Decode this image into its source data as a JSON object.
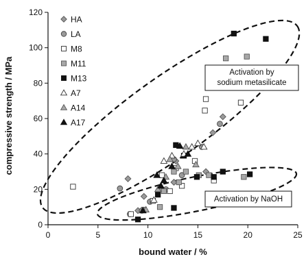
{
  "chart_data": {
    "type": "scatter",
    "xlabel": "bound water / %",
    "ylabel": "compressive strength / MPa",
    "xlim": [
      0,
      25
    ],
    "ylim": [
      0,
      120
    ],
    "xticks": [
      "0",
      "5",
      "10",
      "15",
      "20",
      "25"
    ],
    "yticks": [
      "0",
      "20",
      "40",
      "60",
      "80",
      "100",
      "120"
    ],
    "legend_position": "top-left",
    "annotations": [
      {
        "id": "silicate",
        "lines": [
          "Activation by",
          "sodium metasilicate"
        ]
      },
      {
        "id": "naoh",
        "lines": [
          "Activation by NaOH"
        ]
      }
    ],
    "series": [
      {
        "name": "HA",
        "marker": "diamond",
        "fill": "#9a9a9a",
        "stroke": "#555555",
        "points": [
          [
            8,
            26
          ],
          [
            9,
            8
          ],
          [
            9.6,
            16
          ],
          [
            12.8,
            36
          ],
          [
            15.8,
            30
          ],
          [
            16.5,
            52
          ],
          [
            17.5,
            61
          ],
          [
            11.4,
            20
          ],
          [
            12.6,
            24
          ]
        ]
      },
      {
        "name": "LA",
        "marker": "circle",
        "fill": "#9a9a9a",
        "stroke": "#444444",
        "points": [
          [
            7.2,
            20.5
          ],
          [
            8.2,
            6
          ],
          [
            9.4,
            8
          ],
          [
            10.2,
            13
          ],
          [
            11.8,
            20
          ],
          [
            12.6,
            37
          ],
          [
            13.4,
            28
          ],
          [
            15.4,
            44
          ],
          [
            17.2,
            57
          ]
        ]
      },
      {
        "name": "M8",
        "marker": "square",
        "fill": "#ffffff",
        "stroke": "#333333",
        "points": [
          [
            2.5,
            21.5
          ],
          [
            8.3,
            6
          ],
          [
            10.5,
            13.5
          ],
          [
            11.4,
            28
          ],
          [
            12.2,
            19
          ],
          [
            12.8,
            32
          ],
          [
            13.4,
            22
          ],
          [
            14.7,
            36
          ],
          [
            15.7,
            64.5
          ],
          [
            15.8,
            71
          ],
          [
            16.6,
            25
          ],
          [
            19.3,
            69
          ]
        ]
      },
      {
        "name": "M11",
        "marker": "square",
        "fill": "#a8a8a8",
        "stroke": "#555555",
        "points": [
          [
            9.6,
            8.5
          ],
          [
            11.2,
            10
          ],
          [
            11.6,
            19
          ],
          [
            12.6,
            30
          ],
          [
            13.1,
            24
          ],
          [
            13.8,
            30
          ],
          [
            15.1,
            28
          ],
          [
            16.1,
            28
          ],
          [
            17.8,
            94
          ],
          [
            19.9,
            95
          ],
          [
            19.6,
            27
          ]
        ]
      },
      {
        "name": "M13",
        "marker": "square",
        "fill": "#111111",
        "stroke": "#111111",
        "points": [
          [
            9,
            3
          ],
          [
            11,
            17
          ],
          [
            12.6,
            9.5
          ],
          [
            12.8,
            45
          ],
          [
            13.6,
            39
          ],
          [
            14.9,
            27
          ],
          [
            16.6,
            27
          ],
          [
            17.5,
            30
          ],
          [
            18.6,
            108
          ],
          [
            20.2,
            28.5
          ],
          [
            21.8,
            105
          ]
        ]
      },
      {
        "name": "A7",
        "marker": "triangle",
        "fill": "#ffffff",
        "stroke": "#333333",
        "points": [
          [
            10.6,
            14
          ],
          [
            11.6,
            36
          ],
          [
            12.4,
            39
          ],
          [
            13.6,
            40
          ],
          [
            14.4,
            44
          ],
          [
            15,
            46
          ],
          [
            15.6,
            44
          ]
        ]
      },
      {
        "name": "A14",
        "marker": "triangle",
        "fill": "#a8a8a8",
        "stroke": "#555555",
        "points": [
          [
            9.8,
            8.5
          ],
          [
            11,
            20
          ],
          [
            11.8,
            27
          ],
          [
            12.2,
            37
          ],
          [
            13,
            33
          ],
          [
            13.8,
            44
          ],
          [
            14.8,
            34
          ]
        ]
      },
      {
        "name": "A17",
        "marker": "triangle",
        "fill": "#111111",
        "stroke": "#111111",
        "points": [
          [
            9.5,
            8
          ],
          [
            10.9,
            28
          ],
          [
            11.3,
            22
          ],
          [
            11.6,
            25
          ],
          [
            12.4,
            33
          ],
          [
            13.2,
            44.5
          ],
          [
            14,
            40
          ]
        ]
      }
    ]
  }
}
